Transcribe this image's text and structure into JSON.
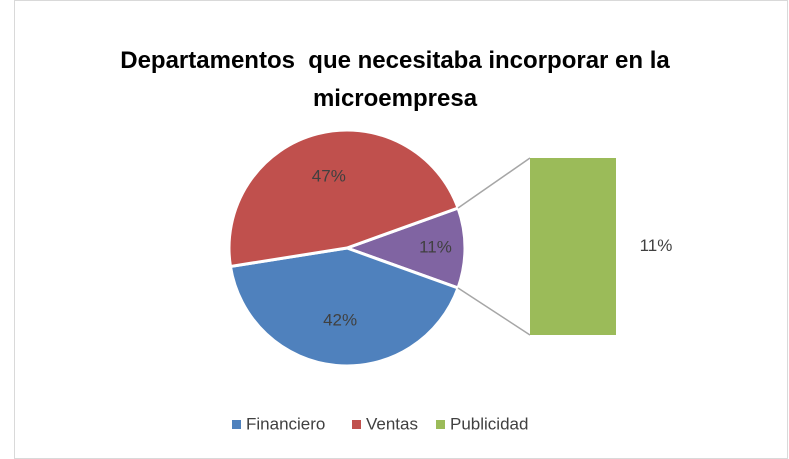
{
  "chart_data": {
    "type": "pie_of_bar",
    "title": "Departamentos  que necesitaba incorporar en la microempresa",
    "categories": [
      "Financiero",
      "Ventas",
      "Publicidad"
    ],
    "values": [
      42,
      47,
      11
    ],
    "value_labels": [
      "42%",
      "47%",
      "11%"
    ],
    "colors": [
      "#4f81bd",
      "#c0504d",
      "#9bbb59"
    ],
    "other_slice": {
      "value": 11,
      "label": "11%",
      "color": "#8064a2"
    },
    "legend": "bottom"
  }
}
